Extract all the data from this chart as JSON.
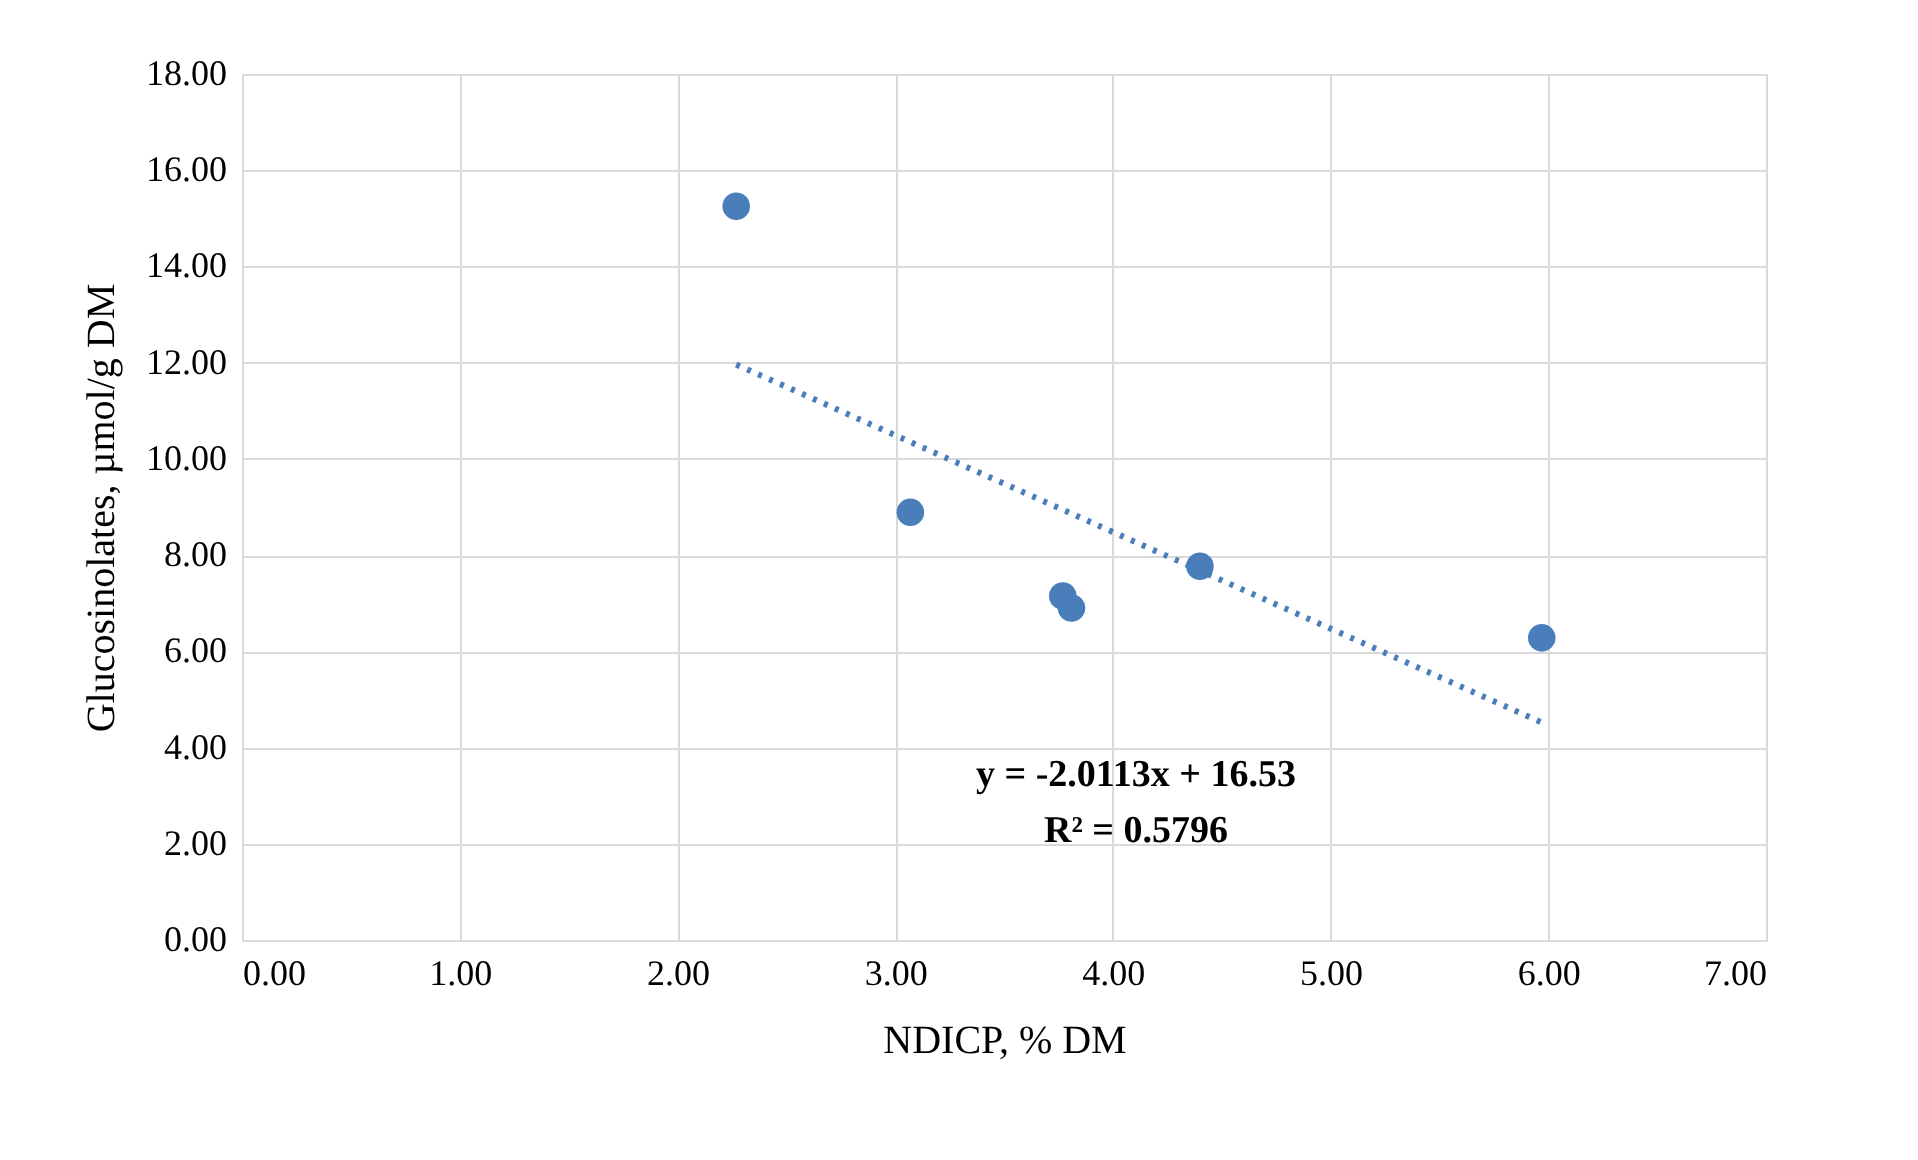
{
  "chart_data": {
    "type": "scatter",
    "xlabel": "NDICP, % DM",
    "ylabel": "Glucosinolates, µmol/g DM",
    "series": [
      {
        "color": "#4a7ebb",
        "marker": "circle",
        "x": [
          2.27,
          3.07,
          3.77,
          3.81,
          4.4,
          5.97
        ],
        "values": [
          15.25,
          8.89,
          7.15,
          6.9,
          7.77,
          6.28
        ]
      },
      {
        "type": "line",
        "color": "#4a7ebb",
        "line_style": "dotted",
        "marker": "none",
        "x": [
          2.27,
          5.97
        ],
        "values": [
          11.96,
          4.52
        ]
      }
    ],
    "xlim": [
      0,
      7
    ],
    "ylim": [
      0,
      18
    ],
    "xticks": [
      {
        "value": 0,
        "label": "0.00"
      },
      {
        "value": 1,
        "label": "1.00"
      },
      {
        "value": 2,
        "label": "2.00"
      },
      {
        "value": 3,
        "label": "3.00"
      },
      {
        "value": 4,
        "label": "4.00"
      },
      {
        "value": 5,
        "label": "5.00"
      },
      {
        "value": 6,
        "label": "6.00"
      },
      {
        "value": 7,
        "label": "7.00"
      }
    ],
    "yticks": [
      {
        "value": 0,
        "label": "0.00"
      },
      {
        "value": 2,
        "label": "2.00"
      },
      {
        "value": 4,
        "label": "4.00"
      },
      {
        "value": 6,
        "label": "6.00"
      },
      {
        "value": 8,
        "label": "8.00"
      },
      {
        "value": 10,
        "label": "10.00"
      },
      {
        "value": 12,
        "label": "12.00"
      },
      {
        "value": 14,
        "label": "14.00"
      },
      {
        "value": 16,
        "label": "16.00"
      },
      {
        "value": 18,
        "label": "18.00"
      }
    ],
    "annotations": [
      "y = -2.0113x + 16.53",
      "R² = 0.5796"
    ],
    "grid": true
  }
}
